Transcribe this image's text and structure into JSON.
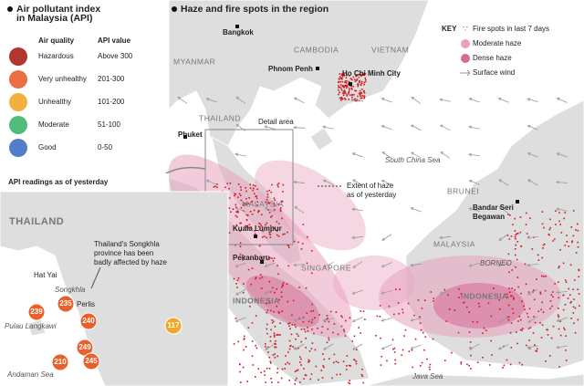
{
  "legend": {
    "title": [
      "Air pollutant index",
      "in Malaysia (API)"
    ],
    "headers": [
      "Air quality",
      "API value"
    ],
    "rows": [
      {
        "label": "Hazardous",
        "range": "Above 300",
        "color": "#a8201a"
      },
      {
        "label": "Very unhealthy",
        "range": "201-300",
        "color": "#e8602c"
      },
      {
        "label": "Unhealthy",
        "range": "101-200",
        "color": "#f0a82c"
      },
      {
        "label": "Moderate",
        "range": "51-100",
        "color": "#3db56e"
      },
      {
        "label": "Good",
        "range": "0-50",
        "color": "#3f6fc4"
      }
    ]
  },
  "inset": {
    "title": "API readings as of yesterday",
    "labels": [
      "THAILAND",
      "Hat Yai",
      "Songkhla",
      "Perlis",
      "Pulau Langkawi",
      "Andaman Sea"
    ],
    "note": [
      "Thailand's Songkhla",
      "province has been",
      "badly affected by haze"
    ],
    "readings": [
      {
        "value": 235,
        "color": "#e8602c"
      },
      {
        "value": 239,
        "color": "#e8602c"
      },
      {
        "value": 240,
        "color": "#e8602c"
      },
      {
        "value": 249,
        "color": "#e8602c"
      },
      {
        "value": 245,
        "color": "#e8602c"
      },
      {
        "value": 210,
        "color": "#e8602c"
      },
      {
        "value": 117,
        "color": "#f0a82c"
      }
    ]
  },
  "main": {
    "title": "Haze and fire spots in the region",
    "places": [
      [
        "Bangkok"
      ],
      [
        "CAMBODIA"
      ],
      [
        "VIETNAM"
      ],
      [
        "Phnom Penh"
      ],
      [
        "Ho Chi Minh City"
      ],
      [
        "MYANMAR"
      ],
      [
        "THAILAND"
      ],
      [
        "Phuket"
      ],
      [
        "Detail area"
      ],
      [
        "MALAYSIA"
      ],
      [
        "Kuala Lumpur"
      ],
      [
        "SUMATRA"
      ],
      [
        "SINGAPORE"
      ],
      [
        "Pekanbaru"
      ],
      [
        "INDONESIA"
      ],
      [
        "South China Sea"
      ],
      [
        "Extent of haze",
        "as of yesterday"
      ],
      [
        "BRUNEI"
      ],
      [
        "Bandar Seri",
        "Begawan"
      ],
      [
        "MALAYSIA"
      ],
      [
        "BORNEO"
      ],
      [
        "INDONESIA"
      ],
      [
        "Java Sea"
      ]
    ],
    "key": {
      "title": "KEY",
      "items": [
        "Fire spots in last 7 days",
        "Moderate haze",
        "Dense haze",
        "Surface wind"
      ]
    }
  }
}
